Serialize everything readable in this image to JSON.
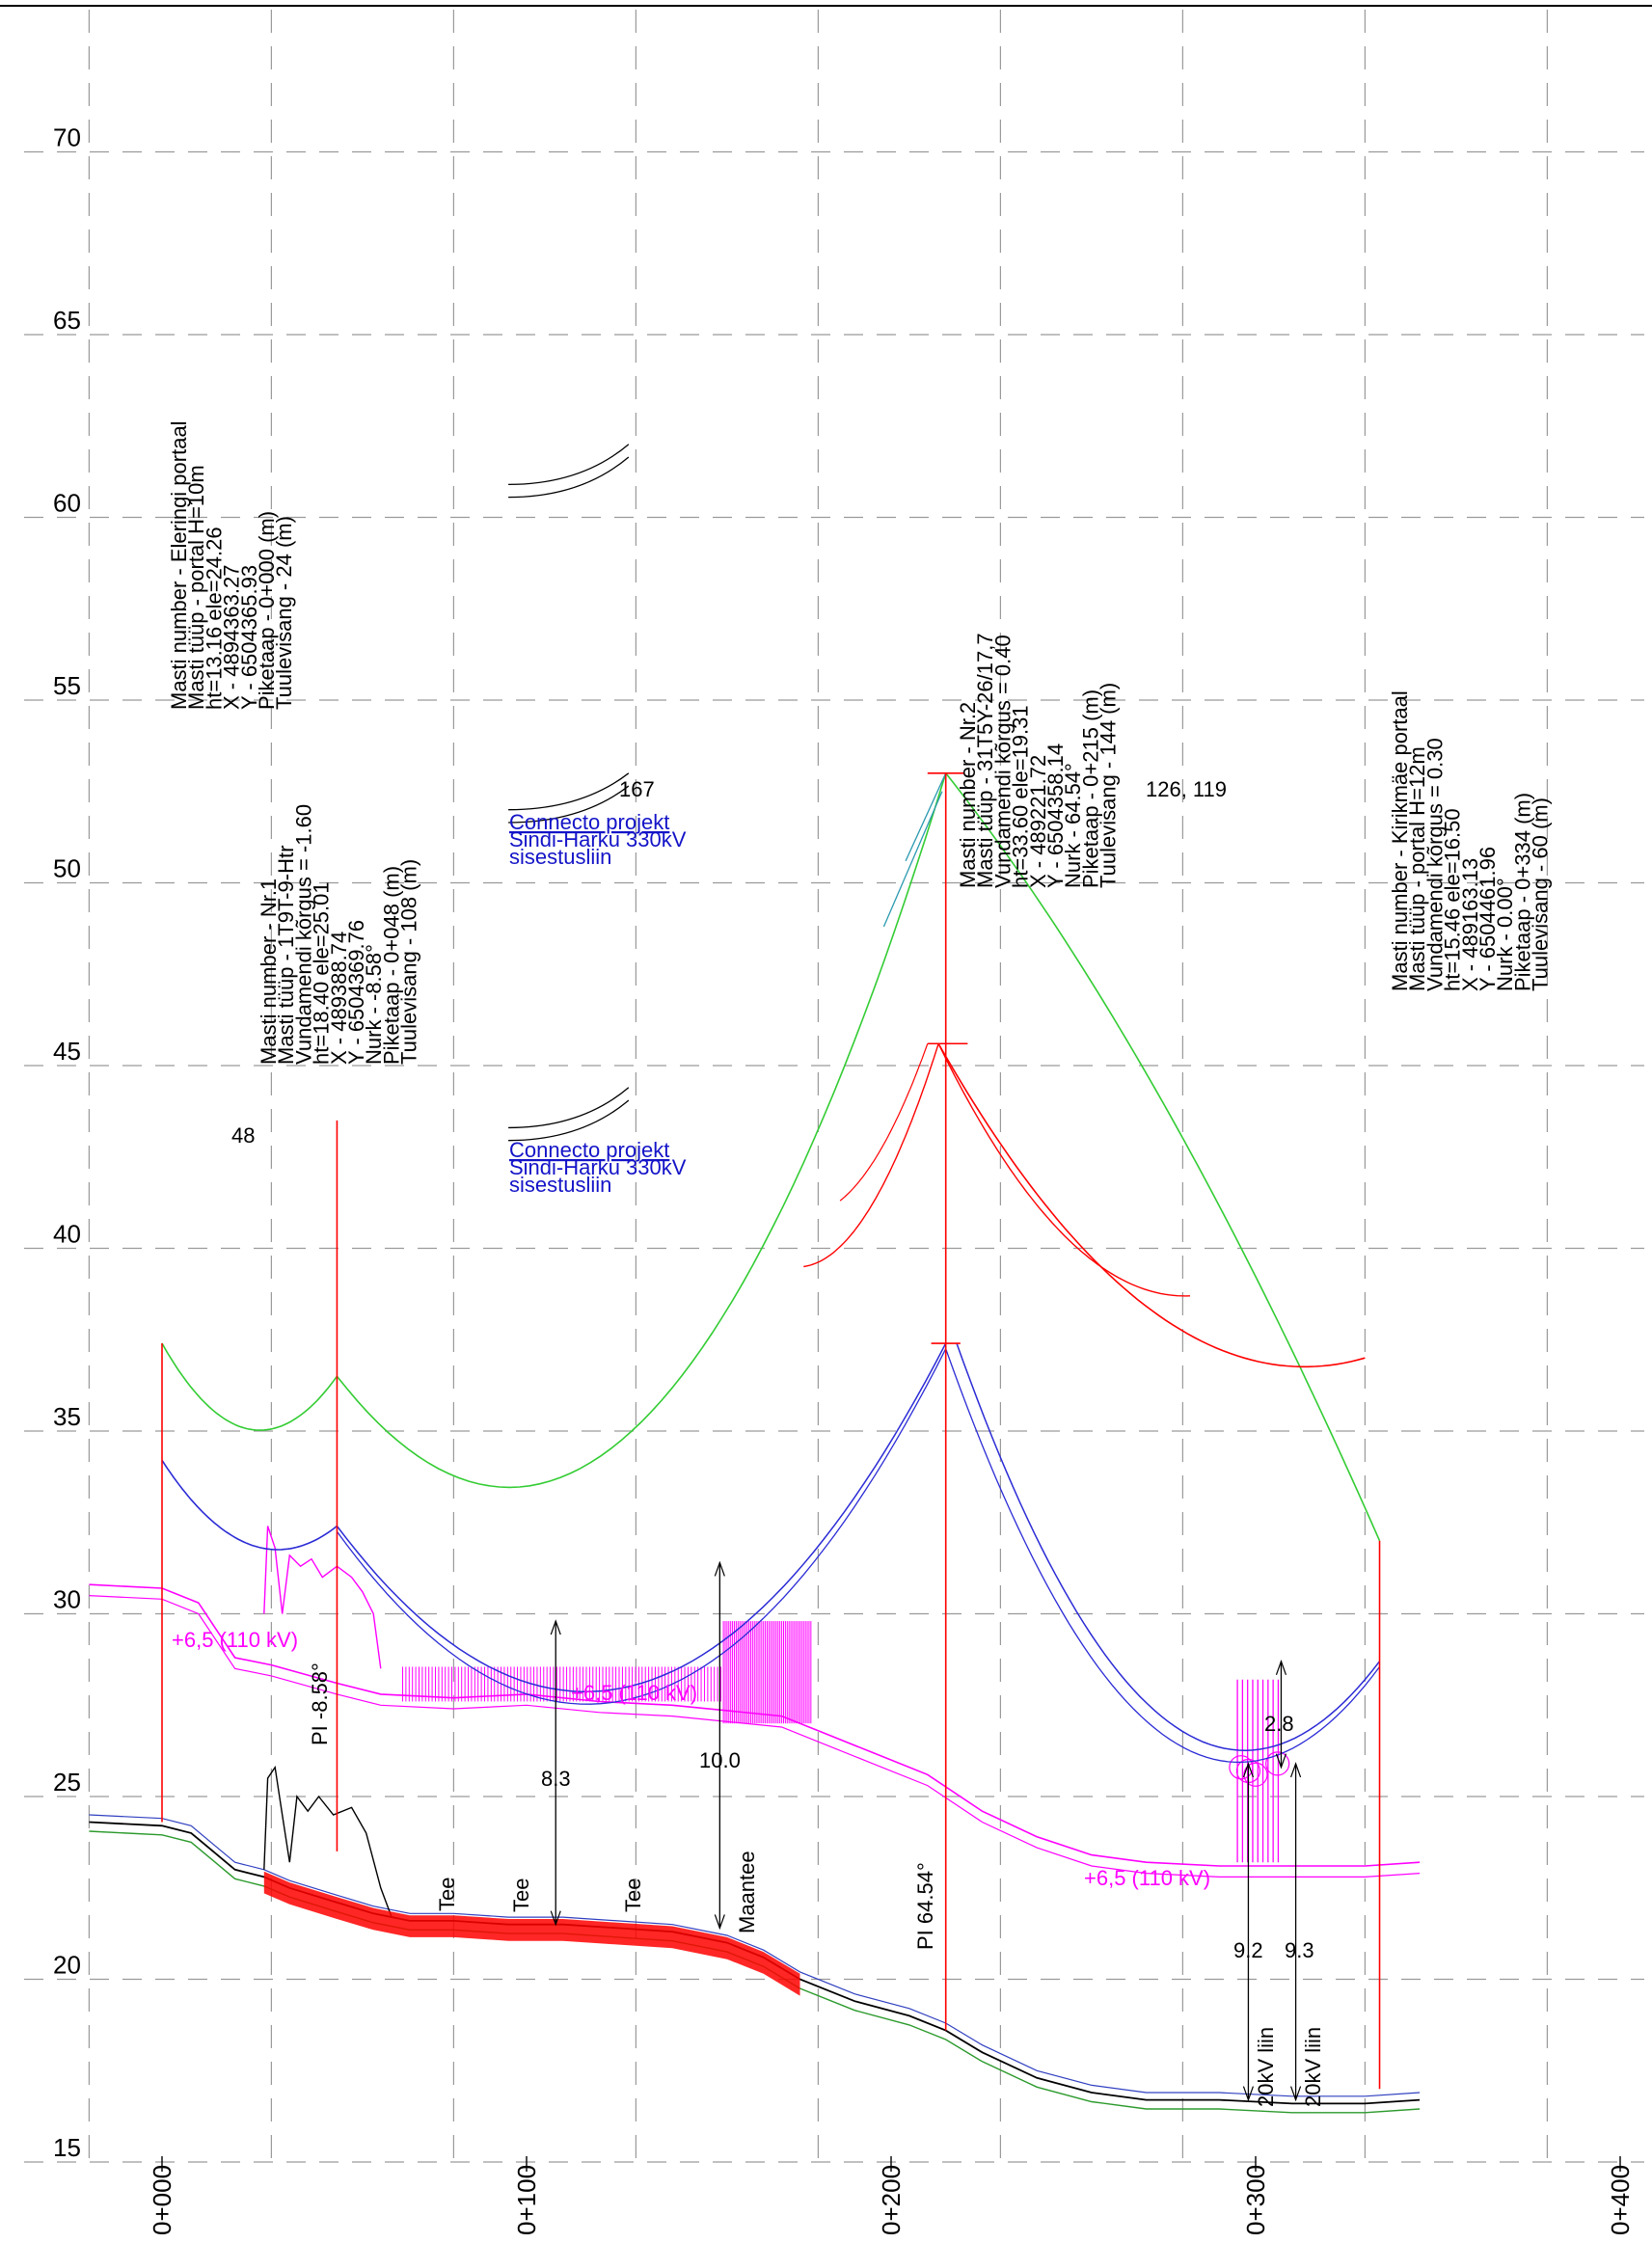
{
  "y_axis": {
    "unit": "m",
    "ticks": [
      15,
      20,
      25,
      30,
      35,
      40,
      45,
      50,
      55,
      60,
      65,
      70
    ],
    "labels": [
      "15",
      "20",
      "25",
      "30",
      "35",
      "40",
      "45",
      "50",
      "55",
      "60",
      "65",
      "70"
    ]
  },
  "x_axis": {
    "ticks": [
      0,
      100,
      200,
      300,
      400
    ],
    "labels": [
      "0+000",
      "0+100",
      "0+200",
      "0+300",
      "0+400"
    ]
  },
  "masts": [
    {
      "station": 0,
      "lines": [
        "Masti number - Eleringi portaal",
        "Masti tüüp - portal H=10m",
        "ht=13.16 ele=24.26",
        "X - 4894363.27",
        "Y - 6504365.93",
        "Piketaap - 0+000 (m)",
        "Tuulevisang - 24 (m)"
      ]
    },
    {
      "station": 48,
      "lines": [
        "Masti number - Nr.1",
        "Masti tüüp - 1T9T-9-Htr",
        "Vundamendi kõrgus = -1.60",
        "ht=18.40 ele=25.01",
        "X - 489388.74",
        "Y - 6504369.76",
        "Nurk - -8.58°",
        "Piketaap - 0+048 (m)",
        "Tuulevisang - 108 (m)"
      ]
    },
    {
      "station": 215,
      "lines": [
        "Masti number - Nr.2",
        "Masti tüüp - 31T5Y-26/17,7",
        "Vundamendi kõrgus = 0.40",
        "ht=33.60 ele=19.31",
        "X - 489221.72",
        "Y - 6504358.14",
        "Nurk - 64.54°",
        "Piketaap - 0+215 (m)",
        "Tuulevisang - 144 (m)"
      ]
    },
    {
      "station": 334,
      "lines": [
        "Masti number - Kirikmäe portaal",
        "Masti tüüp - portal H=12m",
        "Vundamendi kõrgus = 0.30",
        "ht=15.46 ele=16.50",
        "X - 489163.13",
        "Y - 6504461.96",
        "Nurk - 0.00°",
        "Piketaap - 0+334 (m)",
        "Tuulevisang - 60 (m)"
      ]
    }
  ],
  "labels": {
    "span_48": "48",
    "span_167": "167",
    "span_126": "126, 119",
    "connecto_1": [
      "Connecto projekt",
      "Sindi-Harku 330kV",
      "sisestusliin"
    ],
    "connecto_2": [
      "Connecto projekt",
      "Sindi-Harku 330kV",
      "sisestusliin"
    ],
    "clearance_1": "+6,5 (110 kV)",
    "clearance_2": "+6,5 (110 kV)",
    "clearance_3": "+6,5 (110 kV)",
    "pi_1": "PI -8.58°",
    "pi_2": "PI 64.54°",
    "road_1": "Tee",
    "road_2": "Tee",
    "road_3": "Tee",
    "road_4": "Maantee",
    "dim_83": "8.3",
    "dim_100": "10.0",
    "dim_28": "2.8",
    "dim_92": "9.2",
    "dim_93": "9.3",
    "kv20_1": "20kV liin",
    "kv20_2": "20kV liin"
  },
  "colors": {
    "ground": "#000000",
    "ground_alt": "#2c9a2c",
    "ground_survey": "#3040c0",
    "conductor_top": "#33cc33",
    "conductor_main": "#2b2bd6",
    "clearance": "#ff00ff",
    "tower": "#ff0000",
    "connecto_text": "#1414c8",
    "grid": "#9a9a9a"
  }
}
